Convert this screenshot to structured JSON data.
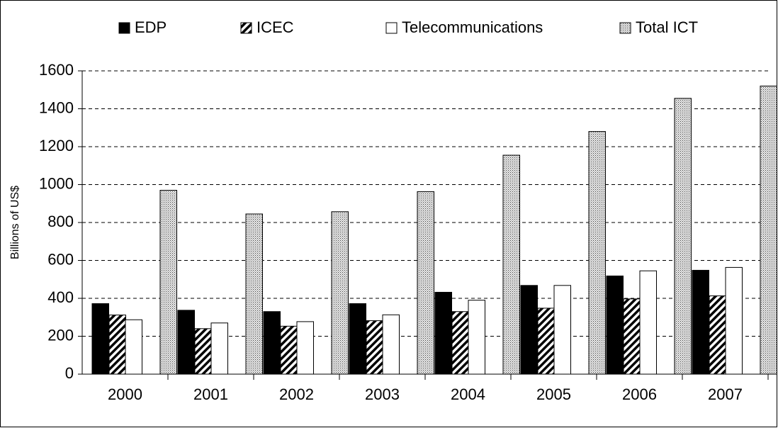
{
  "chart_data": {
    "type": "bar",
    "y_label": "Billions of US$",
    "categories": [
      "2000",
      "2001",
      "2002",
      "2003",
      "2004",
      "2005",
      "2006",
      "2007"
    ],
    "series": [
      {
        "name": "EDP",
        "color": "#000000",
        "pattern": "solid",
        "values": [
          372,
          337,
          330,
          372,
          432,
          468,
          518,
          548
        ]
      },
      {
        "name": "ICEC",
        "color": "#000000",
        "pattern": "diagonal",
        "values": [
          312,
          240,
          253,
          282,
          330,
          348,
          397,
          413
        ]
      },
      {
        "name": "Telecommunications",
        "color": "#ffffff",
        "pattern": "solid",
        "values": [
          287,
          270,
          277,
          313,
          390,
          468,
          545,
          563
        ]
      },
      {
        "name": "Total ICT",
        "color": "#808080",
        "pattern": "dots",
        "values": [
          970,
          845,
          857,
          963,
          1155,
          1280,
          1455,
          1520
        ]
      }
    ],
    "ylim": [
      0,
      1600
    ],
    "yticks": [
      0,
      200,
      400,
      600,
      800,
      1000,
      1200,
      1400,
      1600
    ],
    "grid": true,
    "legend": "top"
  }
}
